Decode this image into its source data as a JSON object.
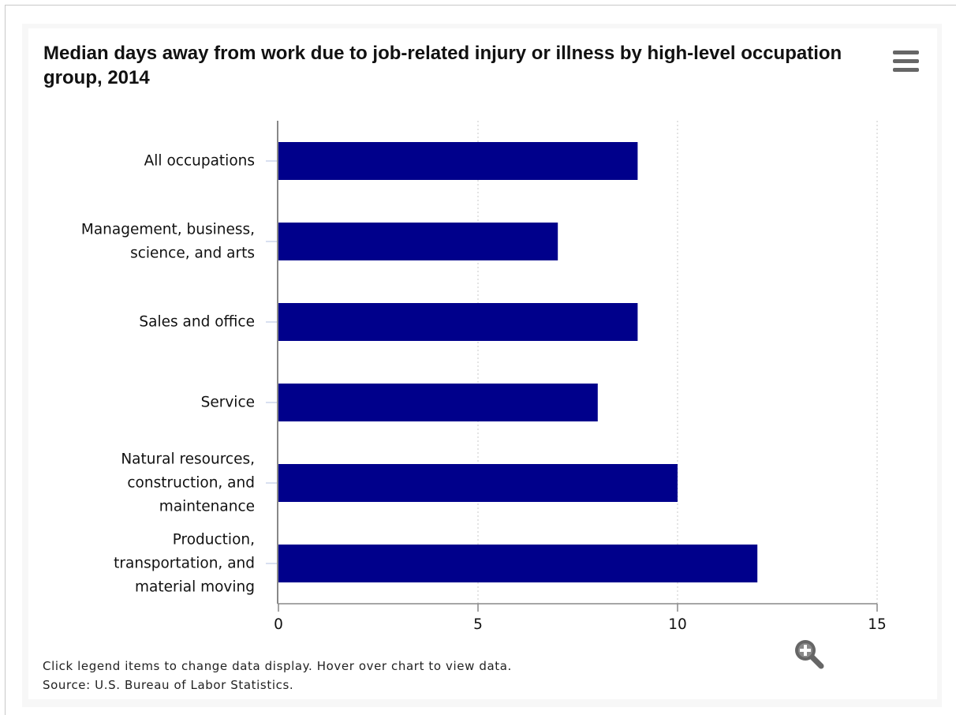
{
  "colors": {
    "bar": "#00008b",
    "axis": "#888888",
    "grid": "#c8c8c8",
    "label": "#111111",
    "icon": "#666666"
  },
  "chart_data": {
    "type": "bar",
    "orientation": "horizontal",
    "title": "Median days away from work due to job-related injury or illness by high-level occupation group, 2014",
    "categories": [
      [
        "All occupations"
      ],
      [
        "Management, business,",
        "science, and arts"
      ],
      [
        "Sales and office"
      ],
      [
        "Service"
      ],
      [
        "Natural resources,",
        "construction, and",
        "maintenance"
      ],
      [
        "Production,",
        "transportation, and",
        "material moving"
      ]
    ],
    "values": [
      9,
      7,
      9,
      8,
      10,
      12
    ],
    "xlim": [
      0,
      15
    ],
    "xticks": [
      0,
      5,
      10,
      15
    ],
    "xlabel": "",
    "ylabel": "",
    "grid": "vertical dotted",
    "legend": "none"
  },
  "icons": {
    "menu": "hamburger-menu-icon",
    "zoom": "zoom-in-icon"
  },
  "footer": {
    "note": "Click legend items to change data display. Hover over chart to view data.",
    "source": "Source: U.S. Bureau of Labor Statistics."
  }
}
